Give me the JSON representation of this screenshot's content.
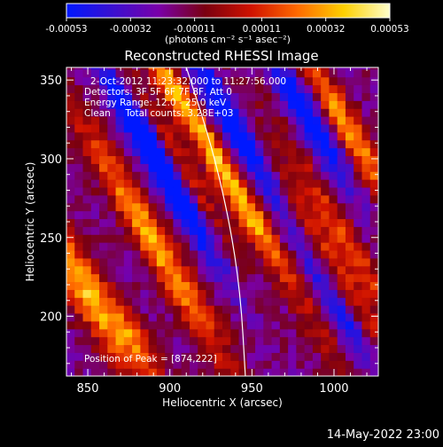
{
  "chart_data": {
    "type": "heatmap",
    "title": "Reconstructed RHESSI Image",
    "xlabel": "Heliocentric X (arcsec)",
    "ylabel": "Heliocentric Y (arcsec)",
    "xlim": [
      837,
      1027
    ],
    "ylim": [
      162,
      358
    ],
    "xticks": [
      850,
      900,
      950,
      1000
    ],
    "yticks": [
      200,
      250,
      300,
      350
    ],
    "colorbar": {
      "min": -0.00053,
      "max": 0.00053,
      "ticks": [
        -0.00053,
        -0.00032,
        -0.00011,
        0.00011,
        0.00032,
        0.00053
      ],
      "tick_labels": [
        "-0.00053",
        "-0.00032",
        "-0.00011",
        "0.00011",
        "0.00032",
        "0.00053"
      ],
      "units_label": "(photons cm⁻² s⁻¹ asec⁻²)",
      "colormap": [
        "#0018ff",
        "#3a10d0",
        "#7a00a8",
        "#7a0010",
        "#d01200",
        "#ff6a00",
        "#ffd000",
        "#ffffcc"
      ]
    },
    "annotations": [
      "2-Oct-2012 11:23:32.000 to 11:27:56.000",
      "Detectors: 3F 5F 6F 7F 8F, Att 0",
      "Energy Range: 12.0 - 25.0 keV",
      "Clean     Total counts: 3.28E+03"
    ],
    "peak_label": "Position of Peak = [874,222]",
    "peak": [
      874,
      222
    ],
    "limb_curve": [
      [
        910,
        358
      ],
      [
        925,
        310
      ],
      [
        936,
        262
      ],
      [
        943,
        215
      ],
      [
        946,
        162
      ]
    ],
    "footer": "14-May-2022 23:00",
    "stripes": [
      {
        "cx": 850,
        "cy": 215,
        "len": 90,
        "w": 8,
        "amp": 0.00053
      },
      {
        "cx": 890,
        "cy": 248,
        "len": 130,
        "w": 7,
        "amp": 0.0005
      },
      {
        "cx": 905,
        "cy": 300,
        "len": 100,
        "w": 5,
        "amp": 0.0003
      },
      {
        "cx": 940,
        "cy": 285,
        "len": 150,
        "w": 5,
        "amp": 0.00036
      },
      {
        "cx": 960,
        "cy": 240,
        "len": 160,
        "w": 5,
        "amp": 0.0004
      },
      {
        "cx": 985,
        "cy": 260,
        "len": 170,
        "w": 5,
        "amp": 0.0003
      },
      {
        "cx": 1008,
        "cy": 320,
        "len": 90,
        "w": 6,
        "amp": 0.00048
      },
      {
        "cx": 1010,
        "cy": 245,
        "len": 120,
        "w": 5,
        "amp": 0.00032
      },
      {
        "cx": 900,
        "cy": 345,
        "len": 40,
        "w": 5,
        "amp": 0.00028
      },
      {
        "cx": 880,
        "cy": 185,
        "len": 40,
        "w": 5,
        "amp": 0.0003
      }
    ],
    "troughs": [
      {
        "cx": 885,
        "cy": 315,
        "len": 80,
        "w": 6,
        "amp": -0.00045
      },
      {
        "cx": 940,
        "cy": 322,
        "len": 90,
        "w": 7,
        "amp": -0.0005
      },
      {
        "cx": 985,
        "cy": 325,
        "len": 70,
        "w": 6,
        "amp": -0.00045
      },
      {
        "cx": 905,
        "cy": 275,
        "len": 90,
        "w": 5,
        "amp": -0.00035
      },
      {
        "cx": 975,
        "cy": 215,
        "len": 80,
        "w": 5,
        "amp": -0.0003
      },
      {
        "cx": 1005,
        "cy": 200,
        "len": 70,
        "w": 5,
        "amp": -0.0003
      }
    ]
  }
}
